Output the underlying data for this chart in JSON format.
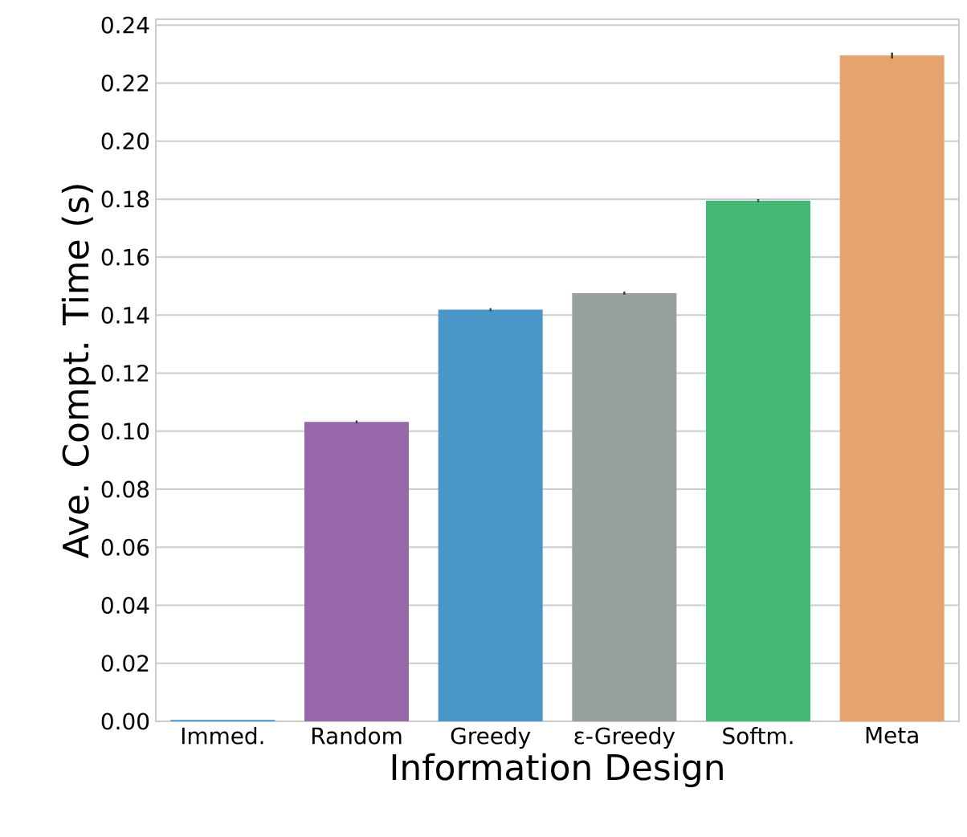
{
  "chart_data": {
    "type": "bar",
    "xlabel": "Information Design",
    "ylabel": "Ave. Compt. Time (s)",
    "categories": [
      "Immed.",
      "Random",
      "Greedy",
      "ε-Greedy",
      "Softm.",
      "Meta"
    ],
    "values": [
      0.0005,
      0.1032,
      0.1419,
      0.1476,
      0.1795,
      0.2295
    ],
    "errors": [
      null,
      0.0005,
      0.0005,
      0.0005,
      0.0005,
      0.001
    ],
    "colors": [
      "#4a96c9",
      "#9668aa",
      "#4a96c9",
      "#979f9f",
      "#45b874",
      "#e5a46e"
    ],
    "ylim": [
      0,
      0.242
    ],
    "yticks": [
      {
        "value": 0,
        "label": "0.00"
      },
      0.02,
      0.04,
      0.06,
      0.08,
      {
        "value": 0.1,
        "label": "0.10"
      },
      0.12,
      0.14,
      0.16,
      0.18,
      {
        "value": 0.2,
        "label": "0.20"
      },
      0.22,
      0.24
    ],
    "grid": "y"
  }
}
